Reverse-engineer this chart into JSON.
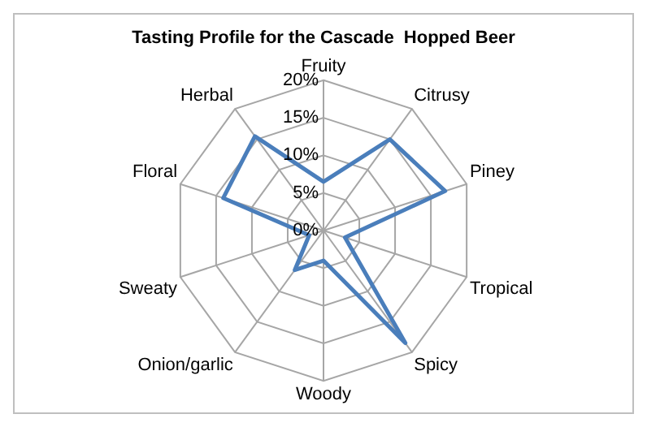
{
  "chart_data": {
    "type": "radar",
    "title": "Tasting Profile for the Cascade  Hopped Beer",
    "categories": [
      "Fruity",
      "Citrusy",
      "Piney",
      "Tropical",
      "Spicy",
      "Woody",
      "Onion/garlic",
      "Sweaty",
      "Floral",
      "Herbal"
    ],
    "series": [
      {
        "color": "#4a7ebb",
        "values": [
          6.5,
          15,
          17,
          3,
          18.5,
          4,
          6.5,
          2,
          14,
          15.5
        ]
      }
    ],
    "ylim": [
      0,
      20
    ],
    "yticks": [
      {
        "value": 0,
        "label": "0%"
      },
      {
        "value": 5,
        "label": "5%"
      },
      {
        "value": 10,
        "label": "10%"
      },
      {
        "value": 15,
        "label": "15%"
      },
      {
        "value": 20,
        "label": "20%"
      }
    ],
    "grid": true,
    "legend": false,
    "marker": "none"
  }
}
